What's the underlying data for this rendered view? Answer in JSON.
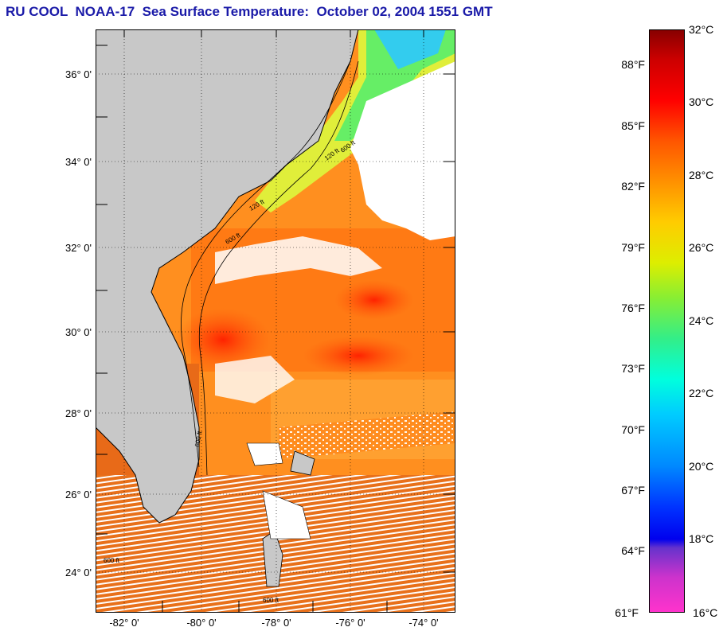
{
  "title": "RU COOL  NOAA-17  Sea Surface Temperature:  October 02, 2004 1551 GMT",
  "map": {
    "lat_labels": [
      "36° 0'",
      "34° 0'",
      "32° 0'",
      "30° 0'",
      "28° 0'",
      "26° 0'",
      "24° 0'"
    ],
    "lon_labels": [
      "-82° 0'",
      "-80° 0'",
      "-78° 0'",
      "-76° 0'",
      "-74° 0'"
    ],
    "contour_labels": [
      "120 ft",
      "600 ft",
      "120 ft",
      "600 ft",
      "600 ft",
      "600 ft",
      "600 ft"
    ],
    "land_color": "#c8c8c8",
    "cloud_color": "#ffffff",
    "warm_water_color": "#ff8c1a",
    "hot_water_color": "#ff3300",
    "cool_water_color": "#66ee66"
  },
  "colorbar": {
    "celsius_labels": [
      "32°C",
      "30°C",
      "28°C",
      "26°C",
      "24°C",
      "22°C",
      "20°C",
      "18°C",
      "16°C"
    ],
    "fahrenheit_labels": [
      "88°F",
      "85°F",
      "82°F",
      "79°F",
      "76°F",
      "73°F",
      "70°F",
      "67°F",
      "64°F",
      "61°F"
    ]
  }
}
